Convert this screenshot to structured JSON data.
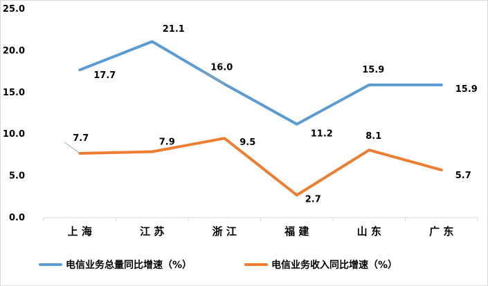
{
  "chart_data": {
    "type": "line",
    "title": "",
    "xlabel": "",
    "ylabel": "",
    "ylim": [
      0,
      25
    ],
    "yticks": [
      "0.0",
      "5.0",
      "10.0",
      "15.0",
      "20.0",
      "25.0"
    ],
    "categories": [
      "上 海",
      "江 苏",
      "浙 江",
      "福 建",
      "山 东",
      "广 东"
    ],
    "grid": false,
    "legend": "bottom",
    "series": [
      {
        "name": "电信业务总量同比增速（%）",
        "color": "#5b9bd5",
        "values": [
          17.7,
          21.1,
          16.0,
          11.2,
          15.9,
          15.9
        ],
        "labels": [
          "17.7",
          "21.1",
          "16.0",
          "11.2",
          "15.9",
          "15.9"
        ]
      },
      {
        "name": "电信业务收入同比增速（%）",
        "color": "#ed7d31",
        "values": [
          7.7,
          7.9,
          9.5,
          2.7,
          8.1,
          5.7
        ],
        "labels": [
          "7.7",
          "7.9",
          "9.5",
          "2.7",
          "8.1",
          "5.7"
        ]
      }
    ]
  }
}
